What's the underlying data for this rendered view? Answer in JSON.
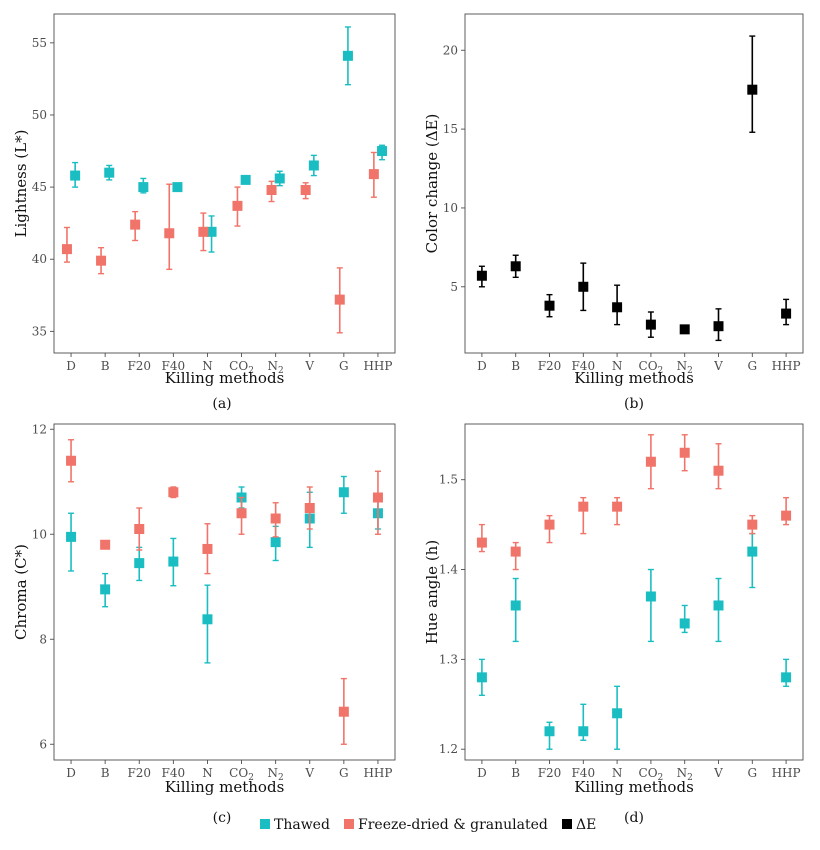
{
  "legend": [
    {
      "key": "thawed",
      "label": "Thawed",
      "color": "#1ABEC2"
    },
    {
      "key": "freeze",
      "label": "Freeze-dried & granulated",
      "color": "#F07469"
    },
    {
      "key": "delta",
      "label": "ΔE",
      "color": "#000000"
    }
  ],
  "chart_data": [
    {
      "panel_label": "(a)",
      "type": "scatter",
      "xlabel": "Killing methods",
      "ylabel": "Lightness (L*)",
      "categories": [
        "D",
        "B",
        "F20",
        "F40",
        "N",
        "CO2",
        "N2",
        "V",
        "G",
        "HHP"
      ],
      "ylim": [
        33.5,
        57
      ],
      "yticks": [
        35,
        40,
        45,
        50,
        55
      ],
      "series": [
        {
          "name": "Thawed",
          "color": "#1ABEC2",
          "offset": 0.12,
          "values": [
            45.8,
            46.0,
            45.0,
            45.0,
            41.9,
            45.5,
            45.6,
            46.5,
            54.1,
            47.5
          ],
          "err_low": [
            45.0,
            45.5,
            44.6,
            44.9,
            40.5,
            45.3,
            45.1,
            45.8,
            52.1,
            46.9
          ],
          "err_high": [
            46.7,
            46.5,
            45.6,
            45.2,
            43.0,
            45.7,
            46.1,
            47.2,
            56.1,
            47.9
          ]
        },
        {
          "name": "Freeze-dried & granulated",
          "color": "#F07469",
          "offset": -0.12,
          "values": [
            40.7,
            39.9,
            42.4,
            41.8,
            41.9,
            43.7,
            44.8,
            44.8,
            37.2,
            45.9
          ],
          "err_low": [
            39.8,
            39.0,
            41.3,
            39.3,
            40.6,
            42.3,
            44.0,
            44.2,
            34.9,
            44.3
          ],
          "err_high": [
            42.2,
            40.8,
            43.3,
            45.2,
            43.2,
            45.0,
            45.4,
            45.3,
            39.4,
            47.4
          ]
        }
      ]
    },
    {
      "panel_label": "(b)",
      "type": "scatter",
      "xlabel": "Killing methods",
      "ylabel": "Color change (ΔE)",
      "categories": [
        "D",
        "B",
        "F20",
        "F40",
        "N",
        "CO2",
        "N2",
        "V",
        "G",
        "HHP"
      ],
      "ylim": [
        0.8,
        22.3
      ],
      "yticks": [
        5,
        10,
        15,
        20
      ],
      "series": [
        {
          "name": "ΔE",
          "color": "#000000",
          "offset": 0,
          "values": [
            5.7,
            6.3,
            3.8,
            5.0,
            3.7,
            2.6,
            2.3,
            2.5,
            17.5,
            3.3
          ],
          "err_low": [
            5.0,
            5.6,
            3.1,
            3.5,
            2.6,
            1.8,
            2.2,
            1.6,
            14.8,
            2.6
          ],
          "err_high": [
            6.3,
            7.0,
            4.5,
            6.5,
            5.1,
            3.4,
            2.4,
            3.6,
            20.9,
            4.2
          ]
        }
      ]
    },
    {
      "panel_label": "(c)",
      "type": "scatter",
      "xlabel": "Killing methods",
      "ylabel": "Chroma (C*)",
      "categories": [
        "D",
        "B",
        "F20",
        "F40",
        "N",
        "CO2",
        "N2",
        "V",
        "G",
        "HHP"
      ],
      "ylim": [
        5.7,
        12.1
      ],
      "yticks": [
        6,
        8,
        10,
        12
      ],
      "series": [
        {
          "name": "Thawed",
          "color": "#1ABEC2",
          "offset": 0.0,
          "values": [
            9.95,
            8.95,
            9.45,
            9.48,
            8.38,
            10.7,
            9.85,
            10.3,
            10.8,
            10.4
          ],
          "err_low": [
            9.3,
            8.62,
            9.12,
            9.02,
            7.55,
            10.5,
            9.5,
            9.75,
            10.4,
            10.1
          ],
          "err_high": [
            10.4,
            9.25,
            9.75,
            9.92,
            9.03,
            10.9,
            10.15,
            10.8,
            11.1,
            10.65
          ]
        },
        {
          "name": "Freeze-dried & granulated",
          "color": "#F07469",
          "offset": 0.0,
          "values": [
            11.4,
            9.8,
            10.1,
            10.8,
            9.72,
            10.4,
            10.3,
            10.5,
            6.62,
            10.7
          ],
          "err_low": [
            11.0,
            9.75,
            9.7,
            10.7,
            9.25,
            10.0,
            9.95,
            10.1,
            6.0,
            10.0
          ],
          "err_high": [
            11.8,
            9.85,
            10.5,
            10.9,
            10.2,
            10.7,
            10.6,
            10.9,
            7.25,
            11.2
          ]
        }
      ]
    },
    {
      "panel_label": "(d)",
      "type": "scatter",
      "xlabel": "Killing methods",
      "ylabel": "Hue angle (h)",
      "categories": [
        "D",
        "B",
        "F20",
        "F40",
        "N",
        "CO2",
        "N2",
        "V",
        "G",
        "HHP"
      ],
      "ylim": [
        1.188,
        1.562
      ],
      "yticks": [
        1.2,
        1.3,
        1.4,
        1.5
      ],
      "series": [
        {
          "name": "Thawed",
          "color": "#1ABEC2",
          "offset": 0.0,
          "values": [
            1.28,
            1.36,
            1.22,
            1.22,
            1.24,
            1.37,
            1.34,
            1.36,
            1.42,
            1.28
          ],
          "err_low": [
            1.26,
            1.32,
            1.2,
            1.21,
            1.2,
            1.32,
            1.33,
            1.32,
            1.38,
            1.27
          ],
          "err_high": [
            1.3,
            1.39,
            1.23,
            1.25,
            1.27,
            1.4,
            1.36,
            1.39,
            1.44,
            1.3
          ]
        },
        {
          "name": "Freeze-dried & granulated",
          "color": "#F07469",
          "offset": 0.0,
          "values": [
            1.43,
            1.42,
            1.45,
            1.47,
            1.47,
            1.52,
            1.53,
            1.51,
            1.45,
            1.46
          ],
          "err_low": [
            1.42,
            1.4,
            1.43,
            1.44,
            1.45,
            1.49,
            1.51,
            1.49,
            1.44,
            1.45
          ],
          "err_high": [
            1.45,
            1.43,
            1.46,
            1.48,
            1.48,
            1.55,
            1.55,
            1.54,
            1.46,
            1.48
          ]
        }
      ]
    }
  ]
}
